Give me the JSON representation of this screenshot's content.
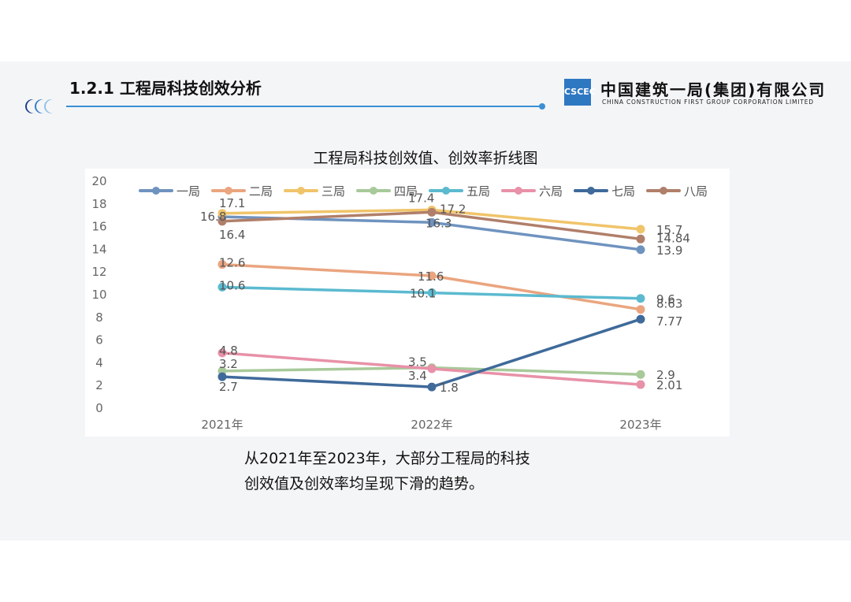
{
  "header": {
    "title": "1.2.1 工程局科技创效分析",
    "logo_mark": "CSCEC",
    "company_cn": "中国建筑一局(集团)有限公司",
    "company_en": "CHINA CONSTRUCTION FIRST GROUP CORPORATION LIMITED"
  },
  "caption": {
    "line1": "从2021年至2023年，大部分工程局的科技",
    "line2": "创效值及创效率均呈现下滑的趋势。"
  },
  "chart_data": {
    "type": "line",
    "title": "工程局科技创效值、创效率折线图",
    "categories": [
      "2021年",
      "2022年",
      "2023年"
    ],
    "ylim": [
      0,
      20
    ],
    "yticks": [
      "0",
      "2",
      "4",
      "6",
      "8",
      "10",
      "12",
      "14",
      "16",
      "18",
      "20"
    ],
    "grid": false,
    "legend_position": "top",
    "series": [
      {
        "name": "一局",
        "color": "#6f93bf",
        "values": [
          16.8,
          16.3,
          13.9
        ],
        "labels": [
          "16.8",
          "16.3",
          "13.9"
        ]
      },
      {
        "name": "二局",
        "color": "#eaa57f",
        "values": [
          12.6,
          11.6,
          8.63
        ],
        "labels": [
          "12.6",
          "11.6",
          "8.63"
        ]
      },
      {
        "name": "三局",
        "color": "#f0c46a",
        "values": [
          17.1,
          17.4,
          15.7
        ],
        "labels": [
          "17.1",
          "17.4",
          "15.7"
        ]
      },
      {
        "name": "四局",
        "color": "#a8c99a",
        "values": [
          3.2,
          3.5,
          2.9
        ],
        "labels": [
          "3.2",
          "3.5",
          "2.9"
        ]
      },
      {
        "name": "五局",
        "color": "#5bbad0",
        "values": [
          10.6,
          10.1,
          9.6
        ],
        "labels": [
          "10.6",
          "10.1",
          "9.6"
        ]
      },
      {
        "name": "六局",
        "color": "#e891a8",
        "values": [
          4.8,
          3.4,
          2.01
        ],
        "labels": [
          "4.8",
          "3.4",
          "2.01"
        ]
      },
      {
        "name": "七局",
        "color": "#3f6a9a",
        "values": [
          2.7,
          1.8,
          7.77
        ],
        "labels": [
          "2.7",
          "1.8",
          "7.77"
        ]
      },
      {
        "name": "八局",
        "color": "#b07f6a",
        "values": [
          16.4,
          17.2,
          14.84
        ],
        "labels": [
          "16.4",
          "17.2",
          "14.84"
        ]
      }
    ]
  }
}
